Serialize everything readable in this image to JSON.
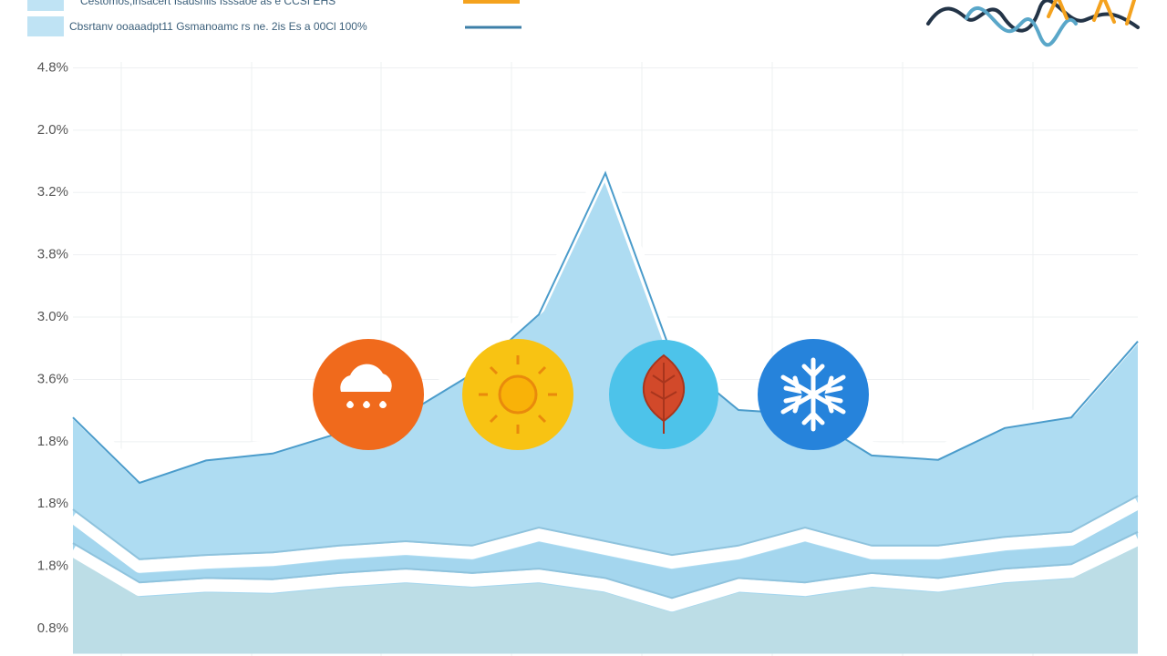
{
  "chart_data": {
    "type": "area",
    "legend": [
      "Cestomos,lhsacert Isadsniis Isssaoe as e CCSI EHS",
      "Cbsrtanv ooaaadpt11 Gsmanoamc rs ne. 2is Es a 00Cl 100%"
    ],
    "x": [
      0,
      0.5,
      1,
      1.5,
      2,
      2.5,
      3,
      3.5,
      4,
      4.5,
      5,
      5.5,
      6,
      6.5,
      7,
      7.5,
      8
    ],
    "xlim": [
      0,
      8
    ],
    "series": [
      {
        "name": "Cestomos,lhsacert Isadsniis Isssaoe as e CCSI EHS",
        "color": "#aedcf2",
        "values": [
          3.39,
          2.34,
          2.7,
          2.81,
          3.14,
          3.44,
          4.09,
          5.04,
          7.31,
          4.39,
          3.51,
          3.44,
          2.78,
          2.71,
          3.22,
          3.39,
          4.61
        ]
      },
      {
        "name": "Cbsrtanv ooaaadpt11 Gsmanoamc rs ne. 2is Es a 00Cl 100%",
        "color": "#a4d6ee",
        "values": [
          1.68,
          0.88,
          0.95,
          0.99,
          1.1,
          1.17,
          1.1,
          1.39,
          1.17,
          0.95,
          1.1,
          1.39,
          1.1,
          1.1,
          1.24,
          1.32,
          1.9
        ]
      },
      {
        "color": "#bcdde6",
        "values": [
          1.14,
          0.51,
          0.58,
          0.56,
          0.66,
          0.73,
          0.66,
          0.73,
          0.58,
          0.26,
          0.58,
          0.51,
          0.66,
          0.58,
          0.73,
          0.8,
          1.32
        ]
      }
    ],
    "ylim": [
      -0.4,
      9.1
    ],
    "yticks": [
      {
        "value": 0,
        "label": "0.8%"
      },
      {
        "value": 1,
        "label": "1.8%"
      },
      {
        "value": 2,
        "label": "1.8%"
      },
      {
        "value": 3,
        "label": "1.8%"
      },
      {
        "value": 4,
        "label": "3.6%"
      },
      {
        "value": 5,
        "label": "3.0%"
      },
      {
        "value": 6,
        "label": "3.8%"
      },
      {
        "value": 7,
        "label": "3.2%"
      },
      {
        "value": 8,
        "label": "2.0%"
      },
      {
        "value": 9,
        "label": "4.8%"
      }
    ],
    "grid": true
  }
}
